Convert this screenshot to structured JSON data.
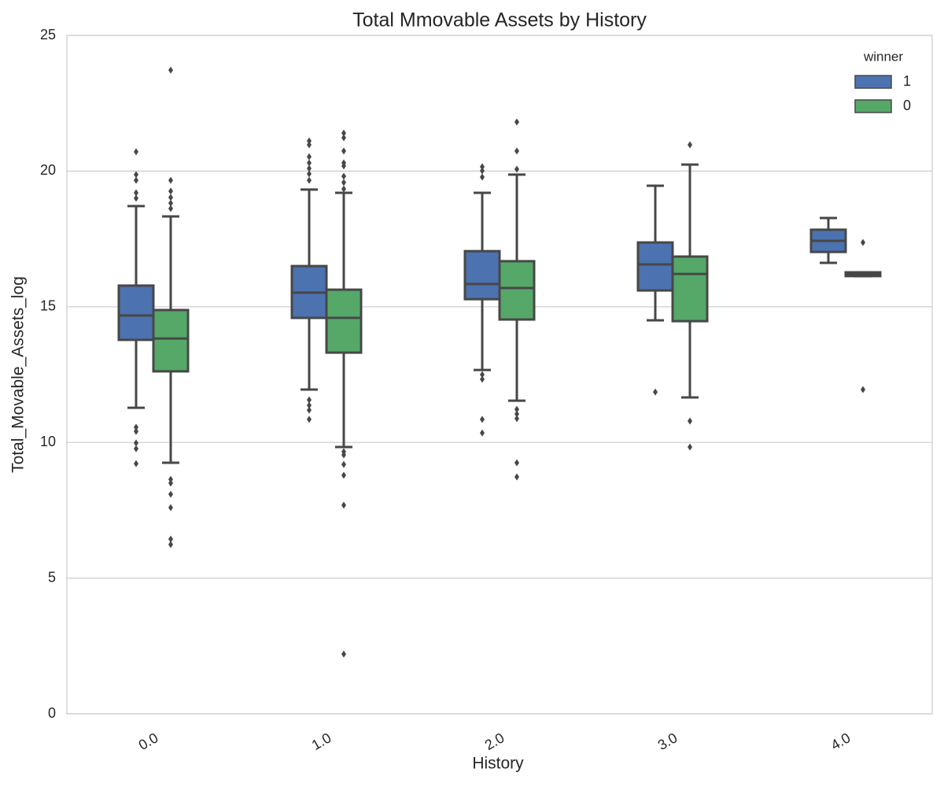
{
  "chart_data": {
    "type": "box",
    "title": "Total Mmovable Assets by History",
    "x_label": "History",
    "y_label": "Total_Movable_Assets_log",
    "categories": [
      "0.0",
      "1.0",
      "2.0",
      "3.0",
      "4.0"
    ],
    "ylim": [
      0,
      25
    ],
    "yticks": [
      0,
      5,
      10,
      15,
      20,
      25
    ],
    "grid": true,
    "legend_title": "winner",
    "legend_position": "upper right",
    "series": [
      {
        "name": "1",
        "color": "#4c72b0",
        "boxes": [
          {
            "whislo": 11.28,
            "q1": 13.78,
            "med": 14.68,
            "q3": 15.78,
            "whishi": 18.71,
            "fliers": [
              20.71,
              19.87,
              19.66,
              19.2,
              19.0,
              10.56,
              10.41,
              9.98,
              9.77,
              9.22
            ]
          },
          {
            "whislo": 11.95,
            "q1": 14.59,
            "med": 15.52,
            "q3": 16.5,
            "whishi": 19.32,
            "fliers": [
              21.11,
              20.97,
              20.53,
              20.3,
              20.1,
              19.9,
              19.66,
              11.57,
              11.37,
              11.19,
              10.85
            ]
          },
          {
            "whislo": 12.67,
            "q1": 15.28,
            "med": 15.84,
            "q3": 17.05,
            "whishi": 19.2,
            "fliers": [
              20.16,
              20.01,
              19.78,
              12.5,
              12.33,
              10.85,
              10.35
            ]
          },
          {
            "whislo": 14.5,
            "q1": 15.6,
            "med": 16.56,
            "q3": 17.37,
            "whishi": 19.46,
            "fliers": [
              11.86
            ]
          },
          {
            "whislo": 16.62,
            "q1": 17.02,
            "med": 17.43,
            "q3": 17.84,
            "whishi": 18.27,
            "fliers": []
          }
        ]
      },
      {
        "name": "0",
        "color": "#55a868",
        "boxes": [
          {
            "whislo": 9.25,
            "q1": 12.62,
            "med": 13.83,
            "q3": 14.88,
            "whishi": 18.33,
            "fliers": [
              23.72,
              19.66,
              19.26,
              19.03,
              18.82,
              18.62,
              8.64,
              8.5,
              8.09,
              7.6,
              6.44,
              6.24
            ]
          },
          {
            "whislo": 9.83,
            "q1": 13.31,
            "med": 14.59,
            "q3": 15.63,
            "whishi": 19.2,
            "fliers": [
              21.4,
              21.23,
              20.74,
              20.3,
              20.19,
              19.81,
              19.58,
              19.34,
              9.66,
              9.54,
              9.19,
              8.79,
              7.69,
              2.2
            ]
          },
          {
            "whislo": 11.54,
            "q1": 14.53,
            "med": 15.69,
            "q3": 16.68,
            "whishi": 19.87,
            "fliers": [
              21.81,
              20.74,
              20.07,
              11.22,
              11.05,
              10.88,
              9.25,
              8.73
            ]
          },
          {
            "whislo": 11.66,
            "q1": 14.47,
            "med": 16.21,
            "q3": 16.85,
            "whishi": 20.24,
            "fliers": [
              20.97,
              10.79,
              9.83
            ]
          },
          {
            "whislo": 16.13,
            "q1": 16.13,
            "med": 16.21,
            "q3": 16.27,
            "whishi": 16.27,
            "fliers": [
              17.37,
              11.95
            ]
          }
        ]
      }
    ]
  }
}
